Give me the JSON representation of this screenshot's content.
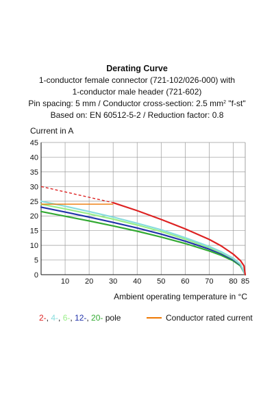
{
  "header": {
    "title": "Derating Curve",
    "subtitle_lines": [
      "1-conductor female connector (721-102/026-000) with",
      "1-conductor male header (721-602)"
    ],
    "spec_line_prefix": "Pin spacing: 5 mm / Conductor cross-section: 2.5 mm",
    "spec_line_sup": "2",
    "spec_line_suffix": " \"f-st\"",
    "basis_line": "Based on: EN 60512-5-2 / Reduction factor: 0.8"
  },
  "legend": {
    "poles_sep": ", ",
    "poles_suffix": " pole",
    "rated_label": "Conductor rated current",
    "rated_color": "#ee7700"
  },
  "chart_data": {
    "type": "line",
    "ylabel": "Current in A",
    "xlabel": "Ambient operating temperature in °C",
    "xlim": [
      0,
      85
    ],
    "ylim": [
      0,
      45
    ],
    "xticks": [
      10,
      20,
      30,
      40,
      50,
      60,
      70,
      80,
      85
    ],
    "yticks": [
      0,
      5,
      10,
      15,
      20,
      25,
      30,
      35,
      40,
      45
    ],
    "grid": true,
    "series": [
      {
        "name": "2-",
        "color": "#dd2222",
        "x": [
          30,
          40,
          50,
          60,
          70,
          75,
          80,
          83,
          84.5,
          85
        ],
        "y": [
          24.5,
          21.8,
          18.8,
          15.6,
          12.0,
          9.8,
          7.0,
          4.8,
          3.0,
          0
        ]
      },
      {
        "name": "4-",
        "color": "#88dddd",
        "x": [
          0,
          10,
          20,
          30,
          40,
          50,
          60,
          70,
          75,
          80,
          83,
          85
        ],
        "y": [
          25.0,
          23.3,
          21.5,
          19.6,
          17.5,
          15.3,
          12.6,
          9.6,
          7.8,
          5.6,
          3.6,
          0
        ]
      },
      {
        "name": "6-",
        "color": "#99ee88",
        "x": [
          0,
          10,
          20,
          30,
          40,
          50,
          60,
          70,
          75,
          80,
          83,
          85
        ],
        "y": [
          24.0,
          22.4,
          20.7,
          18.9,
          16.9,
          14.7,
          12.1,
          9.2,
          7.5,
          5.4,
          3.5,
          0
        ]
      },
      {
        "name": "12-",
        "color": "#2233aa",
        "x": [
          0,
          10,
          20,
          30,
          40,
          50,
          60,
          70,
          75,
          80,
          83,
          85
        ],
        "y": [
          23.0,
          21.3,
          19.6,
          17.8,
          15.9,
          13.8,
          11.4,
          8.7,
          7.1,
          5.1,
          3.3,
          0
        ]
      },
      {
        "name": "20-",
        "color": "#33aa33",
        "x": [
          0,
          10,
          20,
          30,
          40,
          50,
          60,
          70,
          75,
          80,
          83,
          85
        ],
        "y": [
          21.5,
          19.9,
          18.3,
          16.6,
          14.8,
          12.8,
          10.6,
          8.1,
          6.6,
          4.7,
          3.0,
          0
        ]
      }
    ],
    "dashed_extension": {
      "color": "#dd2222",
      "x": [
        0,
        30
      ],
      "y": [
        30,
        24.5
      ]
    },
    "rated_current": {
      "color": "#ee7700",
      "x": [
        0,
        30
      ],
      "y": [
        24,
        24
      ]
    }
  }
}
